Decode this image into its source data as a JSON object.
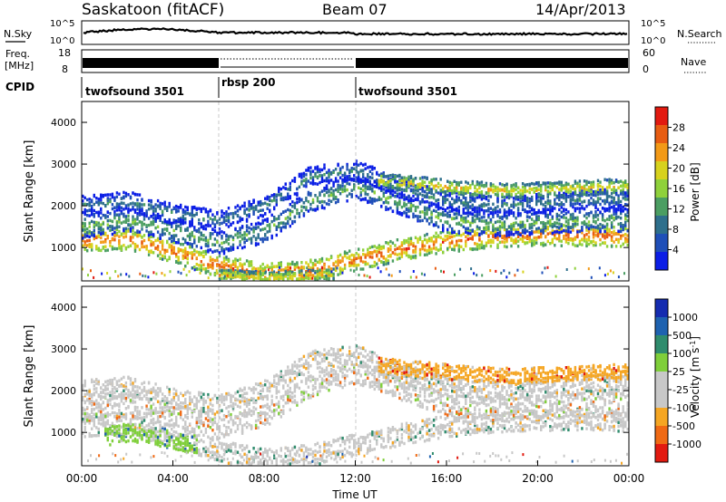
{
  "header": {
    "station": "Saskatoon (fitACF)",
    "beam": "Beam 07",
    "date": "14/Apr/2013"
  },
  "noise_panel": {
    "left_label": "N.Sky",
    "right_label": "N.Search",
    "left_ticks": [
      "10^5",
      "10^0"
    ],
    "right_ticks": [
      "10^5",
      "10^0"
    ]
  },
  "freq_panel": {
    "left_label_1": "Freq.",
    "left_label_2": "[MHz]",
    "right_label": "Nave",
    "left_ticks": [
      "18",
      "8"
    ],
    "right_ticks": [
      "60",
      "0"
    ]
  },
  "cpid": {
    "label": "CPID",
    "segments": [
      {
        "name": "twofsound 3501",
        "start_h": 0,
        "end_h": 6
      },
      {
        "name": "rbsp 200",
        "start_h": 6,
        "end_h": 12
      },
      {
        "name": "twofsound 3501",
        "start_h": 12,
        "end_h": 24
      }
    ]
  },
  "colors": {
    "power": [
      "#0b1ee6",
      "#1f4fb8",
      "#2e6f8c",
      "#4b9e62",
      "#8fd13b",
      "#d7d21d",
      "#f39a17",
      "#e85d12",
      "#e21a10"
    ],
    "velocity": [
      "#e21a10",
      "#f06a14",
      "#f5a623",
      "#c8c8c8",
      "#c8c8c8",
      "#7fcf3a",
      "#2f8c6d",
      "#1e62b0",
      "#152cb0"
    ]
  },
  "chart_data": [
    {
      "type": "heatmap",
      "name": "power",
      "xlabel": "",
      "ylabel": "Slant Range [km]",
      "xlim": [
        0,
        24
      ],
      "ylim": [
        200,
        4500
      ],
      "y_ticks": [
        "1000",
        "2000",
        "3000",
        "4000"
      ],
      "colorbar": {
        "label": "Power [dB]",
        "ticks": [
          "4",
          "8",
          "12",
          "16",
          "20",
          "24",
          "28"
        ],
        "range": [
          0,
          31
        ]
      },
      "bands": [
        {
          "x": [
            0,
            2,
            4,
            6,
            8,
            10,
            12,
            14,
            16,
            18,
            20,
            22,
            24
          ],
          "y": [
            1150,
            1200,
            900,
            550,
            350,
            450,
            700,
            950,
            1150,
            1250,
            1300,
            1300,
            1250
          ],
          "width": 260,
          "value": 27
        },
        {
          "x": [
            0,
            2,
            4,
            6,
            8,
            10,
            12,
            14,
            16,
            18,
            20,
            22,
            24
          ],
          "y": [
            1500,
            1650,
            1400,
            1100,
            1400,
            2100,
            2450,
            2050,
            1650,
            1550,
            1600,
            1650,
            1650
          ],
          "width": 280,
          "value": 14
        },
        {
          "x": [
            0,
            2,
            4,
            6,
            8,
            10,
            12,
            14,
            16,
            18,
            20,
            22,
            24
          ],
          "y": [
            2000,
            2100,
            1800,
            1650,
            2000,
            2700,
            2850,
            2400,
            2100,
            2000,
            2050,
            2150,
            2150
          ],
          "width": 240,
          "value": 10
        },
        {
          "x": [
            13,
            15,
            17,
            19,
            21,
            23,
            24
          ],
          "y": [
            2600,
            2500,
            2400,
            2350,
            2400,
            2450,
            2450
          ],
          "width": 180,
          "value": 21
        },
        {
          "x": [
            6,
            7,
            8,
            9,
            10,
            11
          ],
          "y": [
            330,
            300,
            280,
            290,
            320,
            360
          ],
          "width": 140,
          "value": 22
        }
      ]
    },
    {
      "type": "heatmap",
      "name": "velocity",
      "xlabel": "Time UT",
      "ylabel": "Slant Range [km]",
      "xlim": [
        0,
        24
      ],
      "ylim": [
        200,
        4500
      ],
      "x_ticks": [
        "00:00",
        "04:00",
        "08:00",
        "12:00",
        "16:00",
        "20:00",
        "00:00"
      ],
      "y_ticks": [
        "1000",
        "2000",
        "3000",
        "4000"
      ],
      "colorbar": {
        "label": "Velocity [m s^-1]",
        "ticks": [
          "1000",
          "500",
          "100",
          "25",
          "-25",
          "-100",
          "-500",
          "-1000"
        ]
      },
      "bands": [
        {
          "x": [
            0,
            2,
            4,
            6,
            8,
            10,
            12,
            14,
            16,
            18,
            20,
            22,
            24
          ],
          "y": [
            1150,
            1200,
            900,
            550,
            350,
            450,
            700,
            950,
            1150,
            1250,
            1300,
            1300,
            1250
          ],
          "width": 260,
          "value": 4
        },
        {
          "x": [
            0,
            2,
            4,
            6,
            8,
            10,
            12,
            14,
            16,
            18,
            20,
            22,
            24
          ],
          "y": [
            1500,
            1650,
            1400,
            1100,
            1400,
            2100,
            2450,
            2050,
            1650,
            1550,
            1600,
            1650,
            1650
          ],
          "width": 280,
          "value": 3
        },
        {
          "x": [
            0,
            2,
            4,
            6,
            8,
            10,
            12,
            14,
            16,
            18,
            20,
            22,
            24
          ],
          "y": [
            2000,
            2100,
            1800,
            1650,
            2000,
            2700,
            2850,
            2400,
            2100,
            2000,
            2050,
            2150,
            2150
          ],
          "width": 240,
          "value": 4
        },
        {
          "x": [
            13,
            15,
            17,
            19,
            21,
            23,
            24
          ],
          "y": [
            2600,
            2500,
            2400,
            2350,
            2400,
            2450,
            2450
          ],
          "width": 180,
          "value": 2
        },
        {
          "x": [
            1,
            2,
            3,
            4,
            5
          ],
          "y": [
            900,
            1000,
            950,
            800,
            700
          ],
          "width": 220,
          "value": 5
        }
      ]
    }
  ]
}
